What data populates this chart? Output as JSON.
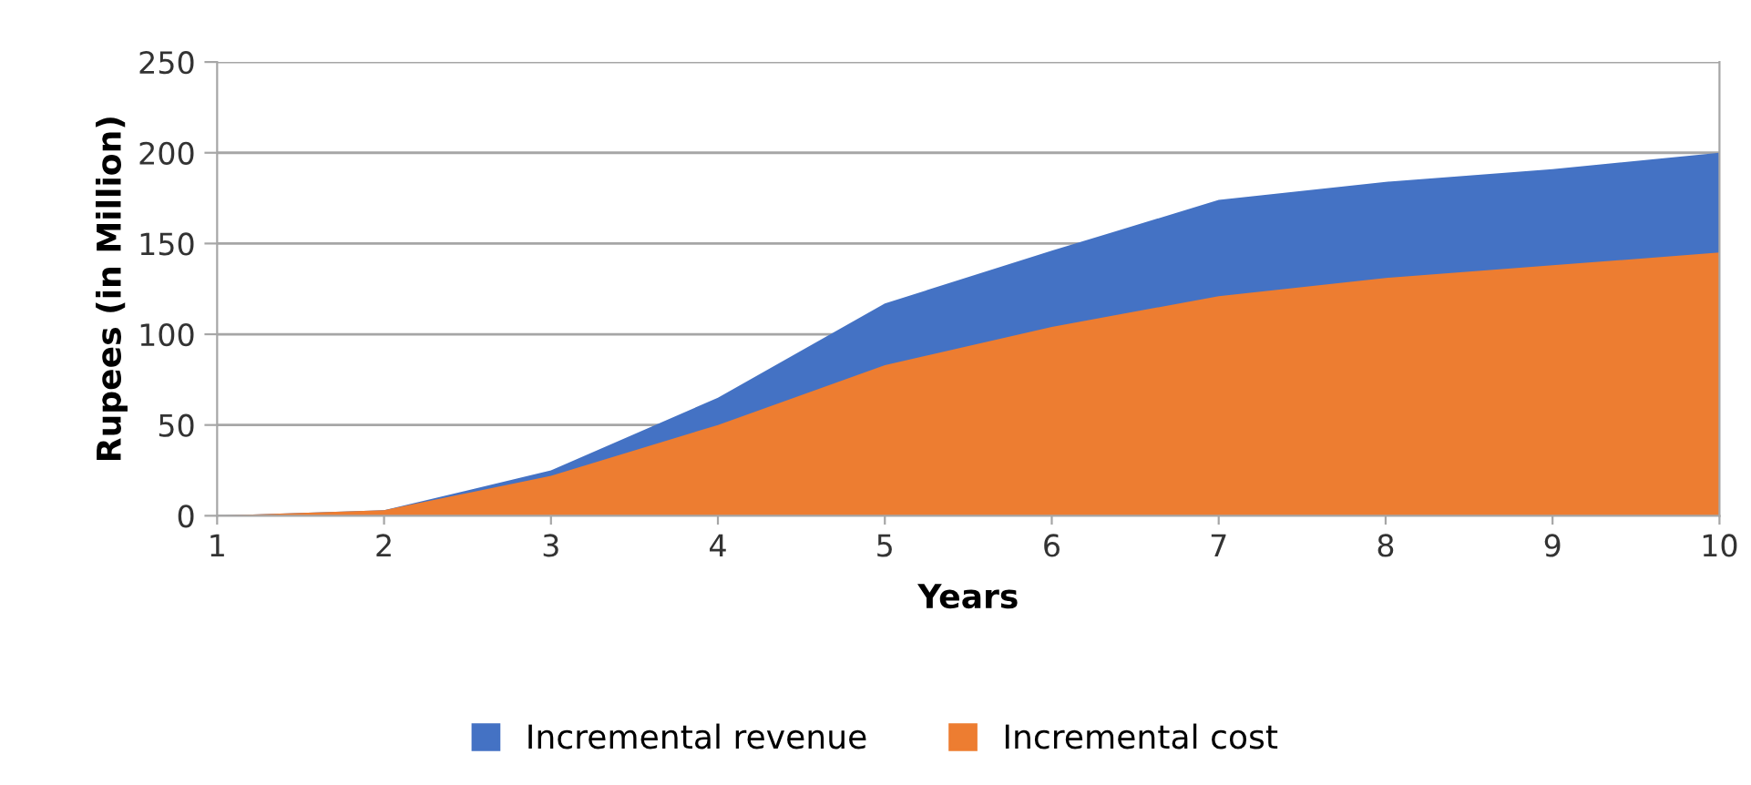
{
  "chart_data": {
    "type": "area",
    "xlabel": "Years",
    "ylabel": "Rupees (in Million)",
    "x": [
      1,
      2,
      3,
      4,
      5,
      6,
      7,
      8,
      9,
      10
    ],
    "series": [
      {
        "name": "Incremental revenue",
        "color": "#4472c4",
        "values": [
          0,
          3,
          25,
          65,
          117,
          146,
          174,
          184,
          191,
          200
        ]
      },
      {
        "name": "Incremental cost",
        "color": "#ed7d31",
        "values": [
          0,
          3,
          22,
          50,
          83,
          104,
          121,
          131,
          138,
          145
        ]
      }
    ],
    "xlim": [
      1,
      10
    ],
    "xticks": [
      1,
      2,
      3,
      4,
      5,
      6,
      7,
      8,
      9,
      10
    ],
    "ylim": [
      0,
      250
    ],
    "yticks": [
      0,
      50,
      100,
      150,
      200,
      250
    ],
    "grid": "y",
    "legend": "bottom"
  }
}
